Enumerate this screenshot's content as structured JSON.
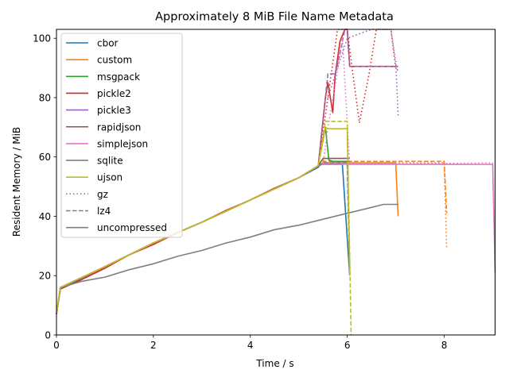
{
  "chart_data": {
    "type": "line",
    "title": "Approximately 8 MiB File Name Metadata",
    "xlabel": "Time / s",
    "ylabel": "Resident Memory / MiB",
    "xlim": [
      0,
      9.05
    ],
    "ylim": [
      0,
      103
    ],
    "xticks": [
      "0",
      "2",
      "4",
      "6",
      "8"
    ],
    "yticks": [
      "0",
      "20",
      "40",
      "60",
      "80",
      "100"
    ],
    "legend_position": "upper-left",
    "grid": false,
    "colors": {
      "cbor": "#1f77b4",
      "custom": "#ff7f0e",
      "msgpack": "#2ca02c",
      "pickle2": "#d62728",
      "pickle3": "#9467bd",
      "rapidjson": "#8c564b",
      "simplejson": "#e377c2",
      "sqlite": "#7f7f7f",
      "ujson": "#bcbd22",
      "neutral": "#7f7f7f"
    },
    "legend": {
      "series": [
        "cbor",
        "custom",
        "msgpack",
        "pickle2",
        "pickle3",
        "rapidjson",
        "simplejson",
        "sqlite",
        "ujson"
      ],
      "styles": [
        {
          "label": "gz",
          "dash": "dotted"
        },
        {
          "label": "lz4",
          "dash": "dashed"
        },
        {
          "label": "uncompressed",
          "dash": "solid"
        }
      ]
    },
    "series": [
      {
        "name": "cbor",
        "style": "uncompressed",
        "x": [
          0,
          0.08,
          0.5,
          1,
          2,
          3,
          4,
          5,
          5.4,
          5.45,
          5.9,
          6.05
        ],
        "y": [
          7,
          15.5,
          19,
          23,
          31,
          38,
          45.5,
          53,
          56.5,
          57.5,
          57.5,
          20
        ]
      },
      {
        "name": "cbor",
        "style": "lz4",
        "x": [
          0,
          0.08,
          1,
          2,
          3,
          4,
          5,
          5.4,
          5.5,
          6.0,
          6.05
        ],
        "y": [
          7,
          16,
          23,
          31,
          38,
          45.5,
          53,
          57,
          58,
          58,
          22
        ]
      },
      {
        "name": "custom",
        "style": "uncompressed",
        "x": [
          0,
          0.08,
          1,
          2,
          3,
          4,
          5,
          5.4,
          5.5,
          7.0,
          7.05
        ],
        "y": [
          7,
          16,
          23,
          31,
          38,
          45.5,
          53,
          57,
          58,
          58,
          40
        ]
      },
      {
        "name": "custom",
        "style": "lz4",
        "x": [
          0,
          0.08,
          1,
          2,
          3,
          4,
          5,
          5.4,
          5.5,
          8.0,
          8.05
        ],
        "y": [
          7,
          16,
          23,
          31,
          38,
          45.5,
          53,
          57,
          58.5,
          58.5,
          41
        ]
      },
      {
        "name": "custom",
        "style": "gz",
        "x": [
          0,
          0.08,
          1,
          2,
          3,
          4,
          5,
          5.4,
          5.5,
          8.0,
          8.05
        ],
        "y": [
          7,
          16,
          23,
          31,
          38,
          45.5,
          53,
          57,
          58,
          58,
          29.5
        ]
      },
      {
        "name": "msgpack",
        "style": "uncompressed",
        "x": [
          0,
          0.08,
          1,
          2,
          3,
          4,
          5,
          5.4,
          5.55,
          5.62,
          5.7,
          6.05
        ],
        "y": [
          7,
          16,
          23,
          31,
          38,
          45.5,
          53,
          57,
          70,
          59,
          58.5,
          58.5
        ]
      },
      {
        "name": "pickle2",
        "style": "uncompressed",
        "x": [
          0,
          0.08,
          0.5,
          1,
          1.5,
          2,
          2.5,
          3,
          3.5,
          4,
          4.5,
          5,
          5.4,
          5.55,
          5.6,
          5.7,
          5.75,
          5.85,
          5.95,
          6.0,
          6.05,
          7.05
        ],
        "y": [
          7,
          15.5,
          18.5,
          22.5,
          27,
          30.5,
          34.5,
          38,
          42,
          45.5,
          49.5,
          53,
          57,
          80,
          85,
          75,
          87.5,
          99,
          103,
          103,
          90.5,
          90.5
        ]
      },
      {
        "name": "pickle2",
        "style": "gz",
        "x": [
          0,
          0.08,
          1,
          2,
          3,
          4,
          5,
          5.4,
          5.6,
          5.8,
          6.0,
          6.1,
          6.25,
          6.45,
          6.6,
          6.9,
          7.0,
          7.05
        ],
        "y": [
          7,
          16,
          23,
          31,
          38,
          45.5,
          53,
          57,
          80,
          103,
          103,
          90,
          71.5,
          88,
          103,
          103,
          90,
          89
        ]
      },
      {
        "name": "pickle3",
        "style": "lz4",
        "x": [
          0,
          0.08,
          1,
          2,
          3,
          4,
          5,
          5.4,
          5.6,
          5.75,
          5.85,
          5.95,
          6.0,
          6.05,
          7.05
        ],
        "y": [
          7,
          16,
          23,
          31,
          38,
          45.5,
          53,
          57,
          88,
          88,
          95,
          103,
          103,
          90.5,
          90.5
        ]
      },
      {
        "name": "pickle3",
        "style": "gz",
        "x": [
          5.6,
          5.8,
          6.0,
          6.5,
          6.9,
          7.0,
          7.05
        ],
        "y": [
          80,
          90,
          100,
          103,
          103,
          92,
          74
        ]
      },
      {
        "name": "rapidjson",
        "style": "uncompressed",
        "x": [
          0,
          0.08,
          1,
          2,
          3,
          4,
          5,
          5.4,
          5.5,
          6.05
        ],
        "y": [
          7,
          16,
          23,
          31,
          38,
          45.5,
          53,
          57,
          59.5,
          59.5
        ]
      },
      {
        "name": "simplejson",
        "style": "uncompressed",
        "x": [
          0,
          0.08,
          1,
          2,
          3,
          4,
          5,
          5.4,
          5.5,
          6.05,
          9.0,
          9.05
        ],
        "y": [
          7,
          16,
          23,
          31,
          38,
          45.5,
          53,
          57,
          57.5,
          57.5,
          57.5,
          21
        ]
      },
      {
        "name": "simplejson",
        "style": "gz",
        "x": [
          5.5,
          5.6,
          5.75,
          5.9,
          6.05,
          9.0,
          9.05
        ],
        "y": [
          57.5,
          70,
          84,
          100,
          57.5,
          58,
          22
        ]
      },
      {
        "name": "sqlite",
        "style": "uncompressed",
        "x": [
          0,
          0.08,
          0.5,
          1,
          1.5,
          2,
          2.5,
          3,
          3.5,
          4,
          4.5,
          5,
          5.5,
          6,
          6.5,
          6.75,
          7.0,
          7.05
        ],
        "y": [
          7,
          16,
          18,
          19.5,
          22,
          24,
          26.5,
          28.5,
          31,
          33,
          35.5,
          37,
          39,
          41,
          43,
          44,
          44,
          44
        ]
      },
      {
        "name": "sqlite",
        "style": "lz4",
        "x": [
          5.4,
          5.5,
          6.0,
          6.05
        ],
        "y": [
          57,
          58,
          58,
          22
        ]
      },
      {
        "name": "ujson",
        "style": "uncompressed",
        "x": [
          0,
          0.08,
          1,
          2,
          3,
          4,
          5,
          5.4,
          5.55,
          5.6,
          6.0,
          6.05
        ],
        "y": [
          7,
          16,
          23,
          31,
          38,
          45.5,
          53,
          57,
          70,
          69.5,
          69.5,
          20
        ]
      },
      {
        "name": "ujson",
        "style": "lz4",
        "x": [
          5.4,
          5.55,
          6.0,
          6.08
        ],
        "y": [
          57,
          72,
          72,
          0
        ]
      }
    ]
  }
}
